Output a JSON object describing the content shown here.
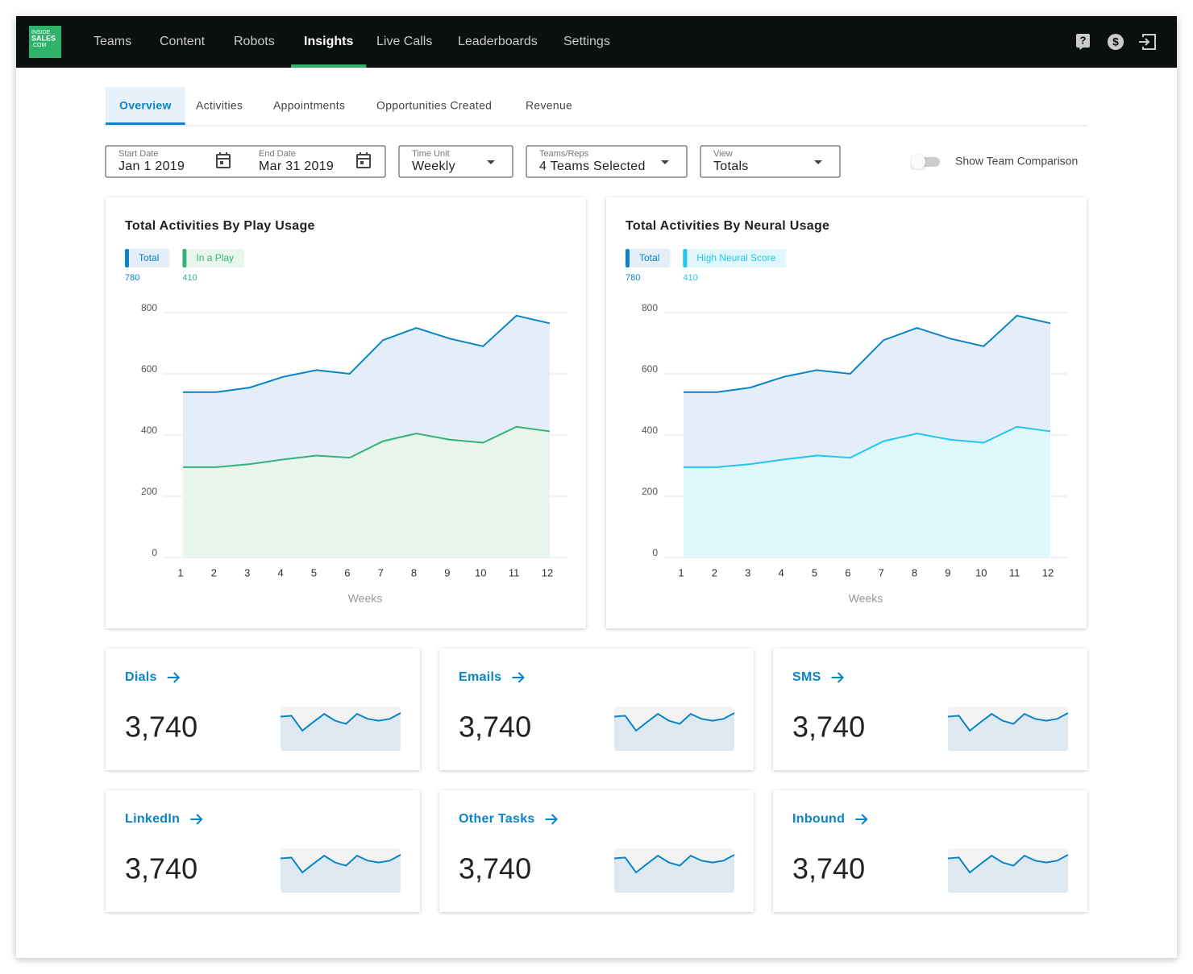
{
  "nav": {
    "logo": [
      "INSIDE",
      "SALES",
      ".COM"
    ],
    "items": [
      "Teams",
      "Content",
      "Robots",
      "Insights",
      "Live Calls",
      "Leaderboards",
      "Settings"
    ],
    "active": 3
  },
  "tabs": {
    "items": [
      "Overview",
      "Activities",
      "Appointments",
      "Opportunities Created",
      "Revenue"
    ],
    "active": 0
  },
  "filters": [
    {
      "label": "Start Date",
      "value": "Jan 1 2019"
    },
    {
      "label": "End Date",
      "value": "Mar 31 2019"
    },
    {
      "label": "Time Unit",
      "value": "Weekly"
    },
    {
      "label": "Teams/Reps",
      "value": "4 Teams Selected"
    },
    {
      "label": "View",
      "value": "Totals"
    }
  ],
  "toggle": "Show Team Comparison",
  "chart_data": [
    {
      "type": "area",
      "title": "Total Activities By Play Usage",
      "xlabel": "Weeks",
      "x": [
        1,
        2,
        3,
        4,
        5,
        6,
        7,
        8,
        9,
        10,
        11,
        12
      ],
      "xlim": [
        1,
        12
      ],
      "xticks": [
        1,
        2,
        3,
        4,
        5,
        6,
        7,
        8,
        9,
        10,
        11,
        12
      ],
      "ylim": [
        0,
        800
      ],
      "yticks": [
        0,
        200,
        400,
        600,
        800
      ],
      "grid": true,
      "series": [
        {
          "name": "Total",
          "color": "#0a84c6",
          "fill": "#e3eef8",
          "summary": 780,
          "values": [
            540,
            540,
            555,
            590,
            612,
            600,
            710,
            750,
            715,
            690,
            790,
            765
          ]
        },
        {
          "name": "In a Play",
          "color": "#35b376",
          "fill": "#e8f6ee",
          "summary": 410,
          "values": [
            295,
            295,
            305,
            320,
            333,
            326,
            380,
            405,
            385,
            375,
            427,
            412
          ]
        }
      ]
    },
    {
      "type": "area",
      "title": "Total Activities By Neural Usage",
      "xlabel": "Weeks",
      "x": [
        1,
        2,
        3,
        4,
        5,
        6,
        7,
        8,
        9,
        10,
        11,
        12
      ],
      "xlim": [
        1,
        12
      ],
      "xticks": [
        1,
        2,
        3,
        4,
        5,
        6,
        7,
        8,
        9,
        10,
        11,
        12
      ],
      "ylim": [
        0,
        800
      ],
      "yticks": [
        0,
        200,
        400,
        600,
        800
      ],
      "grid": true,
      "series": [
        {
          "name": "Total",
          "color": "#0a84c6",
          "fill": "#e3eef8",
          "summary": 780,
          "values": [
            540,
            540,
            555,
            590,
            612,
            600,
            710,
            750,
            715,
            690,
            790,
            765
          ]
        },
        {
          "name": "High Neural Score",
          "color": "#1ec8f0",
          "fill": "#e0f7fc",
          "summary": 410,
          "values": [
            295,
            295,
            305,
            320,
            333,
            326,
            380,
            405,
            385,
            375,
            427,
            412
          ]
        }
      ]
    }
  ],
  "cards": [
    {
      "label": "Dials",
      "value": "3,740",
      "spark": [
        76,
        78,
        45,
        64,
        82,
        67,
        60,
        82,
        71,
        67,
        71,
        84
      ]
    },
    {
      "label": "Emails",
      "value": "3,740",
      "spark": [
        76,
        78,
        45,
        64,
        82,
        67,
        60,
        82,
        71,
        67,
        71,
        84
      ]
    },
    {
      "label": "SMS",
      "value": "3,740",
      "spark": [
        76,
        78,
        45,
        64,
        82,
        67,
        60,
        82,
        71,
        67,
        71,
        84
      ]
    },
    {
      "label": "LinkedIn",
      "value": "3,740",
      "spark": [
        76,
        78,
        45,
        64,
        82,
        67,
        60,
        82,
        71,
        67,
        71,
        84
      ]
    },
    {
      "label": "Other Tasks",
      "value": "3,740",
      "spark": [
        76,
        78,
        45,
        64,
        82,
        67,
        60,
        82,
        71,
        67,
        71,
        84
      ]
    },
    {
      "label": "Inbound",
      "value": "3,740",
      "spark": [
        76,
        78,
        45,
        64,
        82,
        67,
        60,
        82,
        71,
        67,
        71,
        84
      ]
    }
  ]
}
